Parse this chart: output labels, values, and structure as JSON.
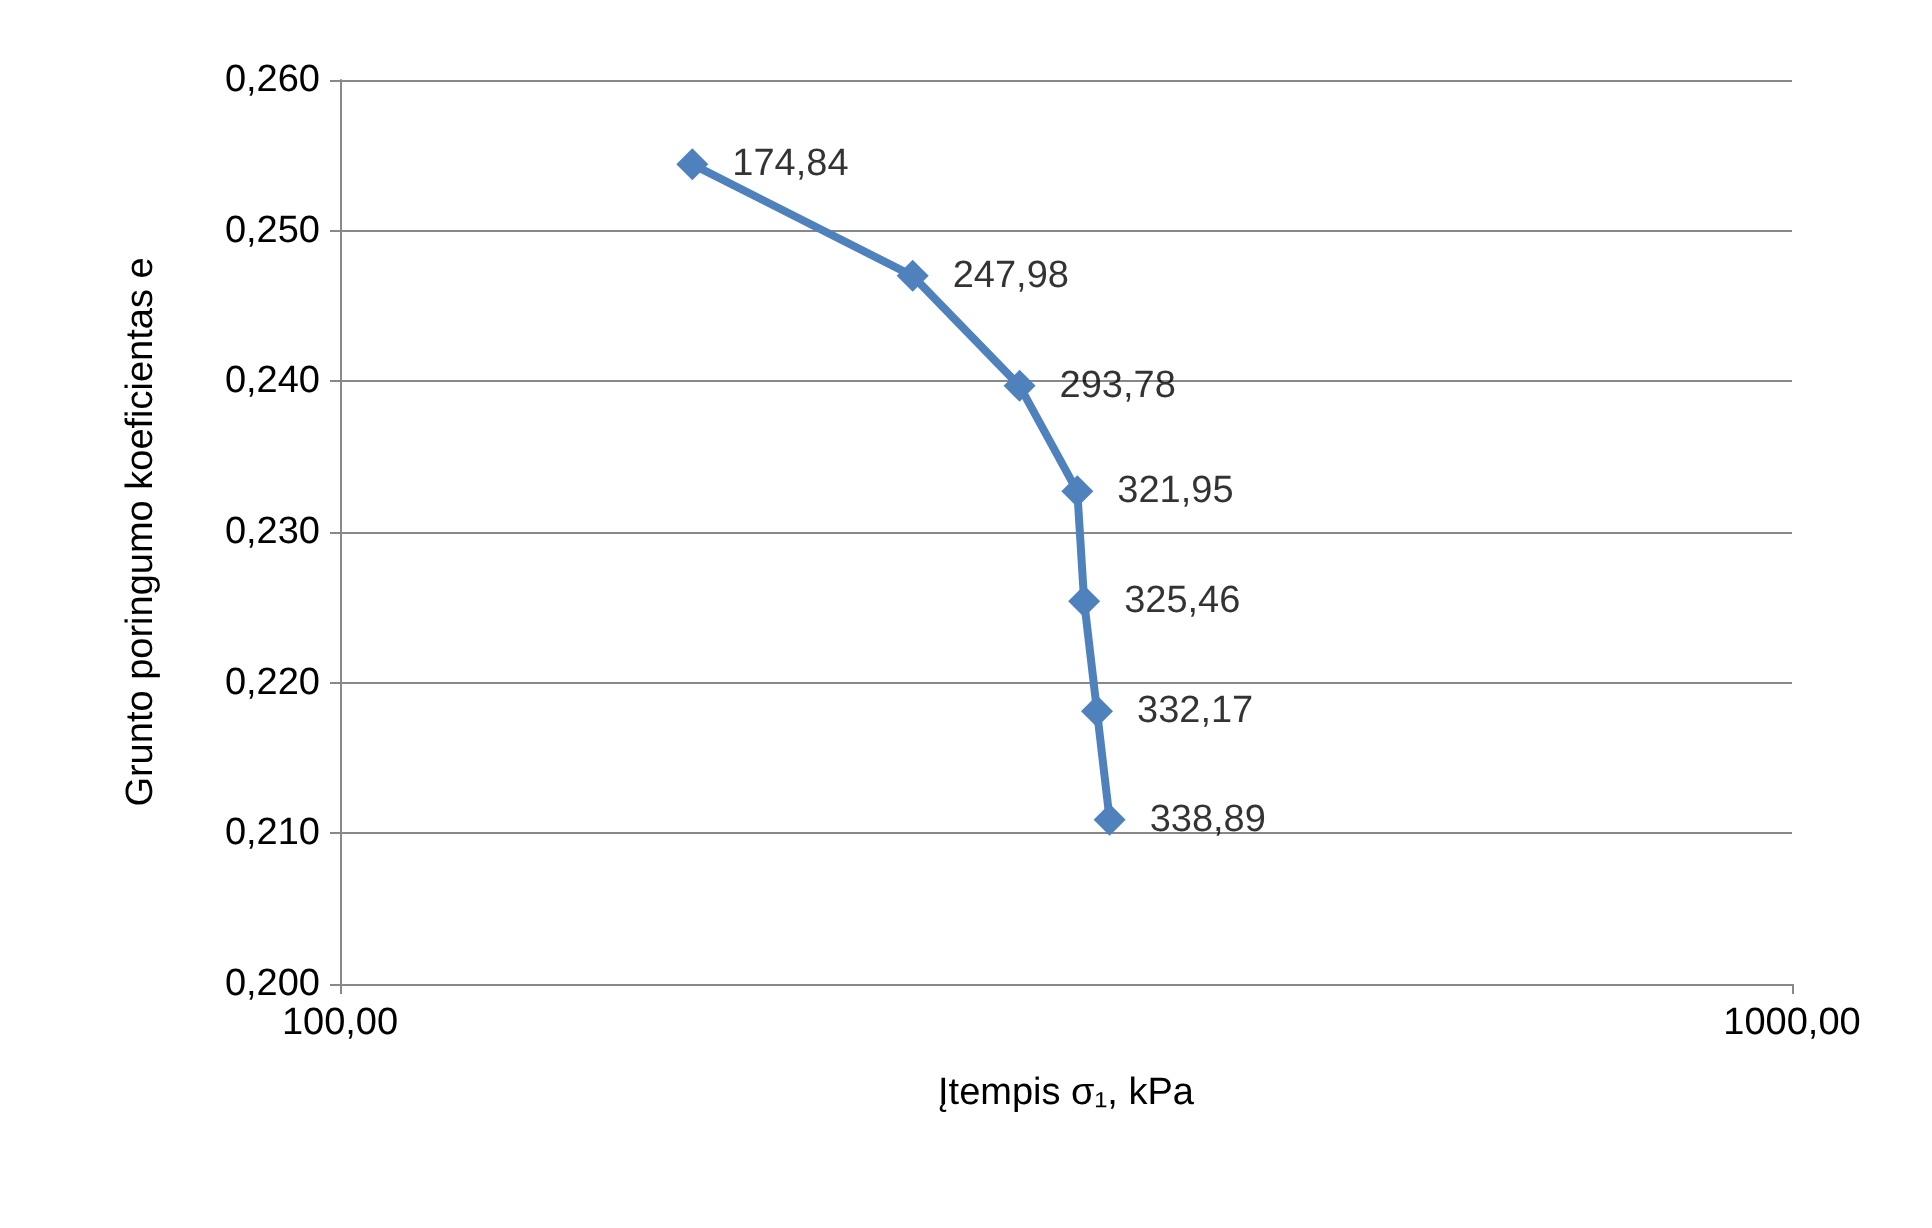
{
  "chart_data": {
    "type": "line",
    "xlabel": "Įtempis σ₁, kPa",
    "ylabel": "Grunto poringumo koeficientas e",
    "series": [
      {
        "color": "#4f81bd",
        "x": [
          174.84,
          247.98,
          293.78,
          321.95,
          325.46,
          332.17,
          338.89
        ],
        "values": [
          0.2544,
          0.247,
          0.2397,
          0.2327,
          0.2254,
          0.2181,
          0.2109
        ]
      }
    ],
    "annotations": [
      {
        "text": "174,84",
        "x": 174.84,
        "y": 0.2544
      },
      {
        "text": "247,98",
        "x": 247.98,
        "y": 0.247
      },
      {
        "text": "293,78",
        "x": 293.78,
        "y": 0.2397
      },
      {
        "text": "321,95",
        "x": 321.95,
        "y": 0.2327
      },
      {
        "text": "325,46",
        "x": 325.46,
        "y": 0.2254
      },
      {
        "text": "332,17",
        "x": 332.17,
        "y": 0.2181
      },
      {
        "text": "338,89",
        "x": 338.89,
        "y": 0.2109
      }
    ],
    "log": "x",
    "xlim": [
      100,
      1000
    ],
    "xticks": [
      {
        "value": 100,
        "label": "100,00"
      },
      {
        "value": 1000,
        "label": "1000,00"
      }
    ],
    "ylim": [
      0.2,
      0.26
    ],
    "yticks": [
      {
        "value": 0.2,
        "label": "0,200"
      },
      {
        "value": 0.21,
        "label": "0,210"
      },
      {
        "value": 0.22,
        "label": "0,220"
      },
      {
        "value": 0.23,
        "label": "0,230"
      },
      {
        "value": 0.24,
        "label": "0,240"
      },
      {
        "value": 0.25,
        "label": "0,250"
      },
      {
        "value": 0.26,
        "label": "0,260"
      }
    ],
    "grid": "y",
    "marker": "diamond",
    "line_style": "solid"
  }
}
